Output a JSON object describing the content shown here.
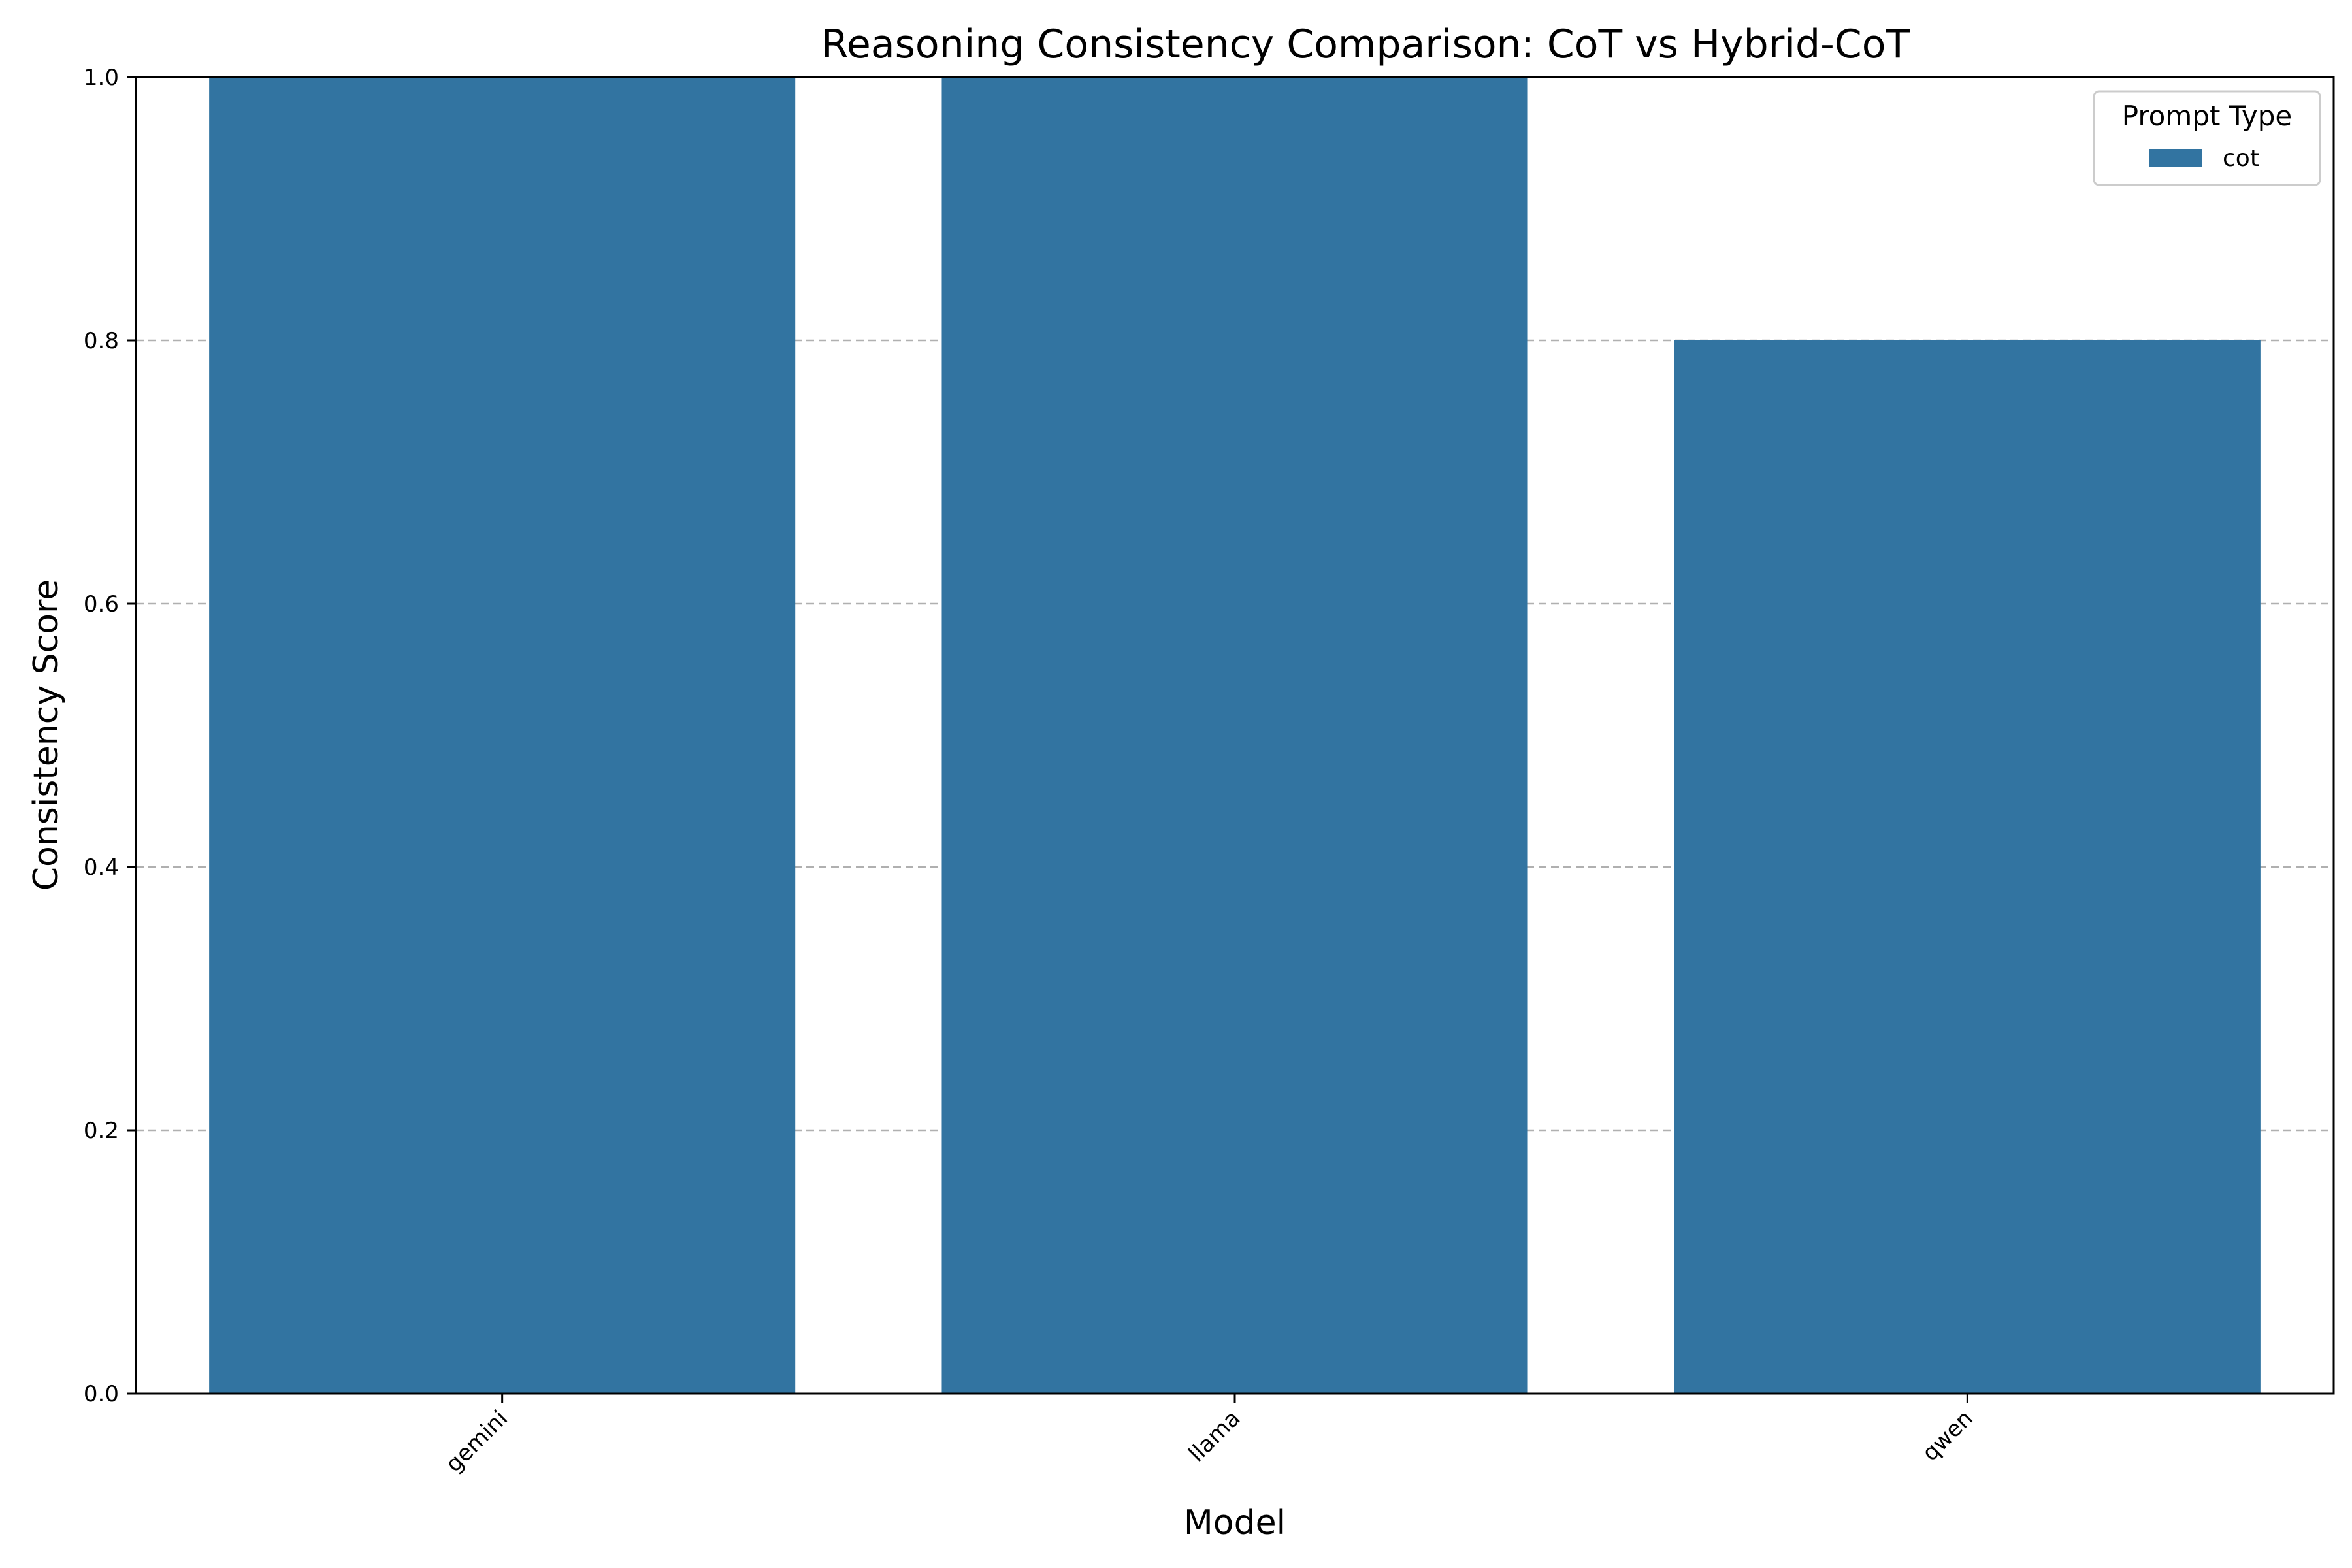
{
  "chart_data": {
    "type": "bar",
    "title": "Reasoning Consistency Comparison: CoT vs Hybrid-CoT",
    "xlabel": "Model",
    "ylabel": "Consistency Score",
    "categories": [
      "gemini",
      "llama",
      "qwen"
    ],
    "series": [
      {
        "name": "cot",
        "values": [
          1.0,
          1.0,
          0.8
        ],
        "color": "#3274a1"
      }
    ],
    "ylim": [
      0,
      1.0
    ],
    "yticks": [
      0.0,
      0.2,
      0.4,
      0.6,
      0.8,
      1.0
    ],
    "ytick_labels": [
      "0.0",
      "0.2",
      "0.4",
      "0.6",
      "0.8",
      "1.0"
    ],
    "grid": {
      "axis": "y",
      "style": "dashed",
      "color": "#b0b0b0"
    },
    "legend": {
      "title": "Prompt Type",
      "position": "top-right"
    }
  }
}
